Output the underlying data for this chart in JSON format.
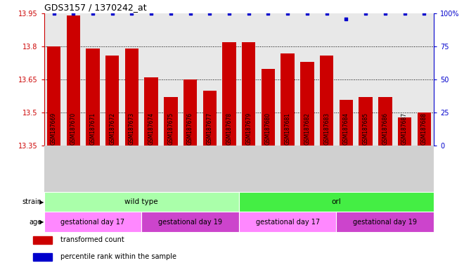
{
  "title": "GDS3157 / 1370242_at",
  "samples": [
    "GSM187669",
    "GSM187670",
    "GSM187671",
    "GSM187672",
    "GSM187673",
    "GSM187674",
    "GSM187675",
    "GSM187676",
    "GSM187677",
    "GSM187678",
    "GSM187679",
    "GSM187680",
    "GSM187681",
    "GSM187682",
    "GSM187683",
    "GSM187684",
    "GSM187685",
    "GSM187686",
    "GSM187687",
    "GSM187688"
  ],
  "bar_values": [
    13.8,
    13.94,
    13.79,
    13.76,
    13.79,
    13.66,
    13.57,
    13.65,
    13.6,
    13.82,
    13.82,
    13.7,
    13.77,
    13.73,
    13.76,
    13.56,
    13.57,
    13.57,
    13.48,
    13.5
  ],
  "percentile_values": [
    100,
    100,
    100,
    100,
    100,
    100,
    100,
    100,
    100,
    100,
    100,
    100,
    100,
    100,
    100,
    96,
    100,
    100,
    100,
    100
  ],
  "bar_color": "#cc0000",
  "percentile_color": "#0000cc",
  "ymin": 13.35,
  "ymax": 13.95,
  "yticks": [
    13.35,
    13.5,
    13.65,
    13.8,
    13.95
  ],
  "ytick_labels": [
    "13.35",
    "13.5",
    "13.65",
    "13.8",
    "13.95"
  ],
  "right_yticks": [
    0,
    25,
    50,
    75,
    100
  ],
  "right_ytick_labels": [
    "0",
    "25",
    "50",
    "75",
    "100%"
  ],
  "grid_lines": [
    13.5,
    13.65,
    13.8
  ],
  "strain_row": [
    {
      "text": "wild type",
      "start": 0,
      "end": 10,
      "color": "#aaffaa"
    },
    {
      "text": "orl",
      "start": 10,
      "end": 20,
      "color": "#44ee44"
    }
  ],
  "age_row": [
    {
      "text": "gestational day 17",
      "start": 0,
      "end": 5,
      "color": "#ff88ff"
    },
    {
      "text": "gestational day 19",
      "start": 5,
      "end": 10,
      "color": "#cc44cc"
    },
    {
      "text": "gestational day 17",
      "start": 10,
      "end": 15,
      "color": "#ff88ff"
    },
    {
      "text": "gestational day 19",
      "start": 15,
      "end": 20,
      "color": "#cc44cc"
    }
  ],
  "legend_items": [
    {
      "color": "#cc0000",
      "label": "transformed count"
    },
    {
      "color": "#0000cc",
      "label": "percentile rank within the sample"
    }
  ],
  "plot_bg_color": "#e8e8e8",
  "xtick_bg_color": "#d0d0d0"
}
